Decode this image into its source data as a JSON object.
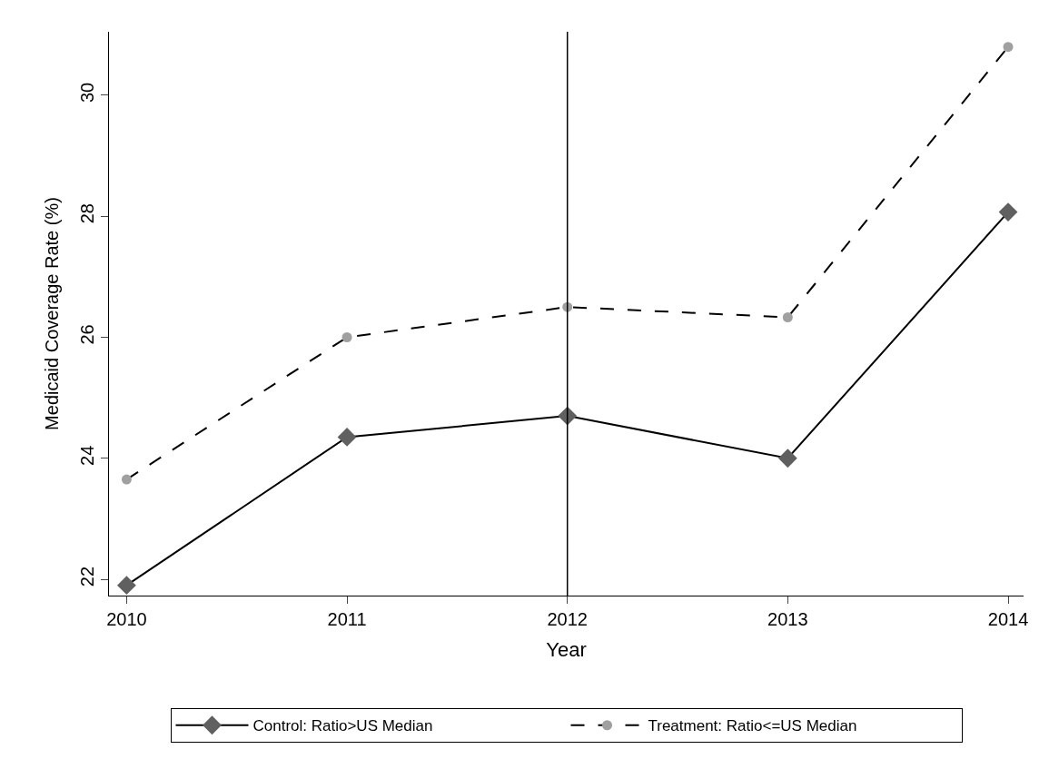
{
  "chart_data": {
    "type": "line",
    "xlabel": "Year",
    "ylabel": "Medicaid Coverage Rate (%)",
    "x": [
      2010,
      2011,
      2012,
      2013,
      2014
    ],
    "series": [
      {
        "name": "Control: Ratio>US Median",
        "color": "#606060",
        "marker": "diamond",
        "line_style": "solid",
        "values": [
          21.9,
          24.35,
          24.7,
          24.0,
          28.07
        ]
      },
      {
        "name": "Treatment: Ratio<=US Median",
        "color": "#a0a0a0",
        "marker": "circle",
        "line_style": "dashed",
        "values": [
          23.65,
          26.0,
          26.5,
          26.33,
          30.8
        ]
      }
    ],
    "xlim": [
      2009.92,
      2014.07
    ],
    "xticks": [
      2010,
      2011,
      2012,
      2013,
      2014
    ],
    "ylim": [
      21.73,
      31.05
    ],
    "yticks": [
      22,
      24,
      26,
      28,
      30
    ],
    "ref_lines": [
      {
        "axis": "x",
        "value": 2012,
        "color": "#000000"
      }
    ],
    "legend": "bottom"
  }
}
